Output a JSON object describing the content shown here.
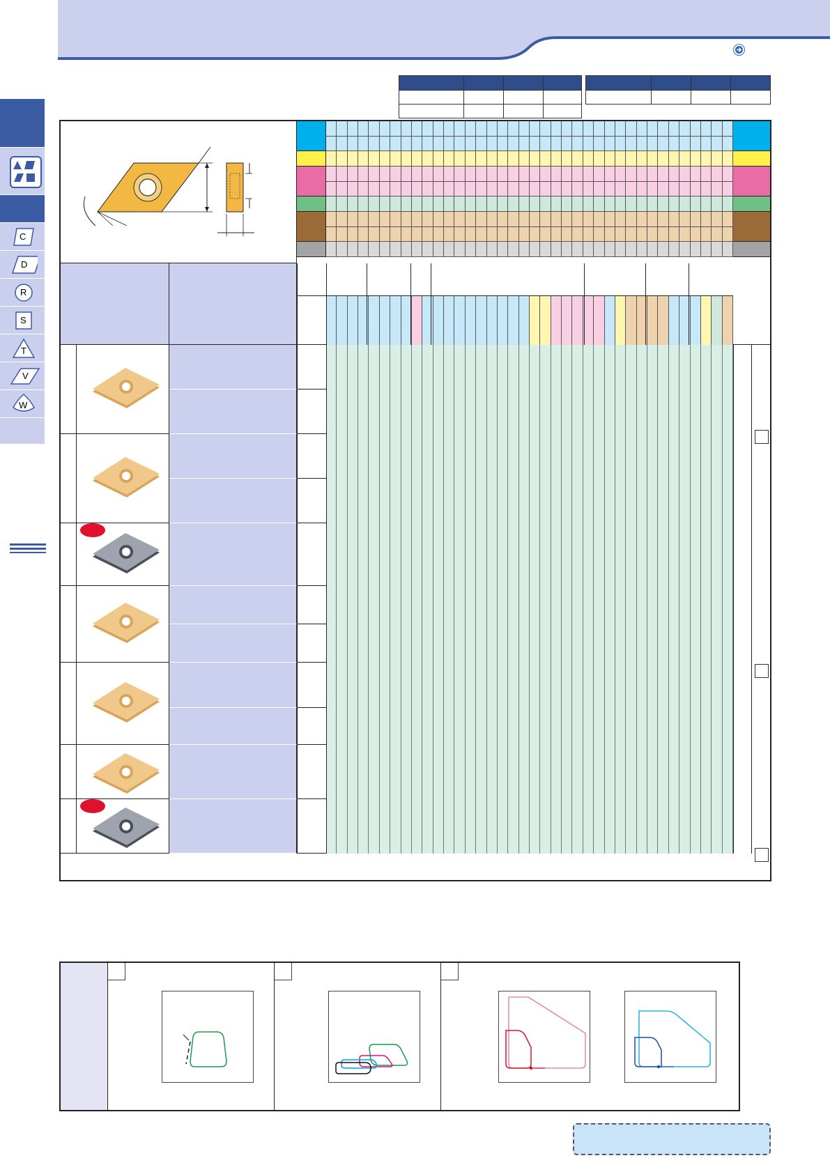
{
  "page": {
    "header_color": "#cbd0ef",
    "accent_color": "#3b5ba5",
    "arrow_icon": "arrow-right-circle-icon"
  },
  "side_tabs": {
    "items": [
      {
        "letter": "C",
        "shape": "rhombus-80-icon"
      },
      {
        "letter": "D",
        "shape": "rhombus-55-icon"
      },
      {
        "letter": "R",
        "shape": "round-icon"
      },
      {
        "letter": "S",
        "shape": "square-icon"
      },
      {
        "letter": "T",
        "shape": "triangle-icon"
      },
      {
        "letter": "V",
        "shape": "rhombus-35-icon"
      },
      {
        "letter": "W",
        "shape": "trigon-icon"
      }
    ]
  },
  "legend_colors": {
    "P": "#00b0ec",
    "M": "#fff04b",
    "K": "#ea6ca7",
    "N": "#70bf86",
    "S": "#9b6a39",
    "H": "#a4a4a4"
  },
  "column_tints": {
    "blue": "#c7e8f8",
    "yellow": "#fff7b0",
    "pink": "#f8cfe3",
    "green": "#cfe8dc",
    "tan": "#efd2ae",
    "gray": "#d9d9d9"
  },
  "product_rows": [
    {
      "image": "insert-gold-photo",
      "new_badge": false
    },
    {
      "image": "insert-gold-photo",
      "new_badge": false
    },
    {
      "image": "insert-dark-photo",
      "new_badge": true
    },
    {
      "image": "insert-gold-photo",
      "new_badge": false
    },
    {
      "image": "insert-gold-photo",
      "new_badge": false
    },
    {
      "image": "insert-gold-photo",
      "new_badge": false
    },
    {
      "image": "insert-dark-photo",
      "new_badge": true
    }
  ],
  "charts": {
    "note": ""
  }
}
